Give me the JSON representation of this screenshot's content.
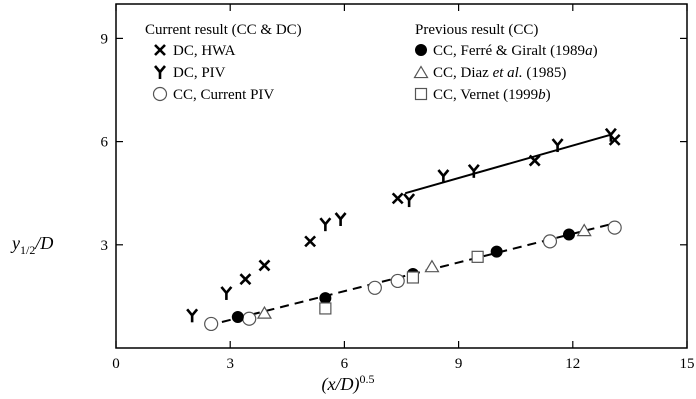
{
  "chart_data": {
    "type": "scatter",
    "xlabel": "(x/D)",
    "xlabel_superscript": "0.5",
    "ylabel": "y",
    "ylabel_subscript": "1/2",
    "ylabel_suffix": "/D",
    "xlim": [
      0,
      15
    ],
    "ylim": [
      0,
      10
    ],
    "xticks": [
      0,
      3,
      6,
      9,
      12,
      15
    ],
    "yticks": [
      3,
      6,
      9
    ],
    "xtick_labels": [
      "0",
      "3",
      "6",
      "9",
      "12",
      "15"
    ],
    "ytick_labels": [
      "3",
      "6",
      "9"
    ],
    "grid": false,
    "legend_groups": [
      {
        "title": "Current result (CC & DC)"
      },
      {
        "title": "Previous result (CC)"
      }
    ],
    "series": [
      {
        "name": "DC, HWA",
        "marker": "X",
        "points": [
          [
            3.4,
            2.0
          ],
          [
            3.9,
            2.4
          ],
          [
            5.1,
            3.1
          ],
          [
            7.4,
            4.35
          ],
          [
            11.0,
            5.45
          ],
          [
            13.1,
            6.05
          ]
        ]
      },
      {
        "name": "DC, PIV",
        "marker": "Y",
        "points": [
          [
            2.0,
            0.95
          ],
          [
            2.9,
            1.6
          ],
          [
            5.5,
            3.6
          ],
          [
            5.9,
            3.75
          ],
          [
            7.7,
            4.3
          ],
          [
            8.6,
            5.0
          ],
          [
            9.4,
            5.15
          ],
          [
            11.6,
            5.9
          ],
          [
            13.0,
            6.2
          ]
        ]
      },
      {
        "name": "CC, Current PIV",
        "marker": "open-circle",
        "points": [
          [
            2.5,
            0.7
          ],
          [
            3.5,
            0.85
          ],
          [
            6.8,
            1.75
          ],
          [
            7.4,
            1.95
          ],
          [
            11.4,
            3.1
          ],
          [
            13.1,
            3.5
          ]
        ]
      },
      {
        "name": "CC, Ferré & Giralt (1989a)",
        "marker": "filled-circle",
        "points": [
          [
            3.2,
            0.9
          ],
          [
            5.5,
            1.45
          ],
          [
            7.8,
            2.15
          ],
          [
            10.0,
            2.8
          ],
          [
            11.9,
            3.3
          ]
        ]
      },
      {
        "name": "CC, Diaz et al. (1985)",
        "marker": "open-triangle",
        "points": [
          [
            3.9,
            1.0
          ],
          [
            8.3,
            2.35
          ],
          [
            12.3,
            3.4
          ]
        ]
      },
      {
        "name": "CC, Vernet (1999b)",
        "marker": "open-square",
        "points": [
          [
            5.5,
            1.15
          ],
          [
            7.8,
            2.05
          ],
          [
            9.5,
            2.65
          ]
        ]
      }
    ],
    "fit_lines": [
      {
        "style": "solid",
        "points": [
          [
            7.6,
            4.5
          ],
          [
            13.0,
            6.2
          ]
        ]
      },
      {
        "style": "dashed",
        "points": [
          [
            2.4,
            0.65
          ],
          [
            13.0,
            3.6
          ]
        ]
      }
    ]
  },
  "legend_labels": {
    "hwa": "DC, HWA",
    "piv": "DC, PIV",
    "cc_piv": "CC, Current PIV",
    "ferre_prefix": "CC, Ferré & Giralt (1989",
    "ferre_italic": "a",
    "ferre_suffix": ")",
    "diaz_prefix": "CC, Diaz ",
    "diaz_italic": "et al.",
    "diaz_suffix": " (1985)",
    "vernet_prefix": "CC, Vernet (1999",
    "vernet_italic": "b",
    "vernet_suffix": ")"
  }
}
